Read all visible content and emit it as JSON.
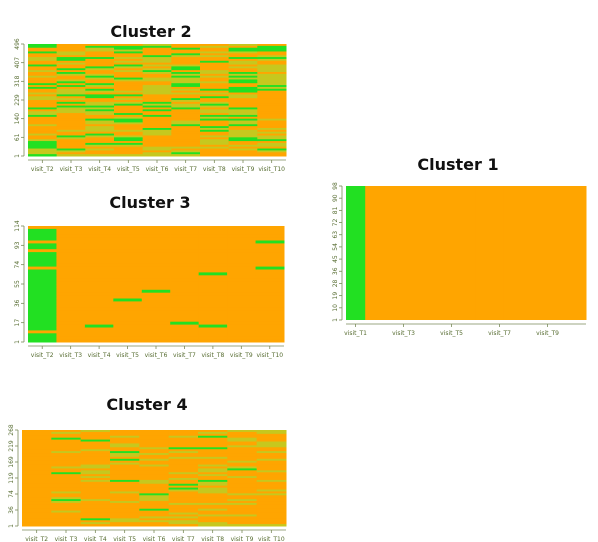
{
  "colors": {
    "green": "#22e022",
    "orange": "#ffa500",
    "yellowgreen": "#c6c81e",
    "axis_text": "#556b2f"
  },
  "chart_data": [
    {
      "type": "heatmap",
      "title": "Cluster 2",
      "xlabel": "",
      "ylabel": "",
      "x_tick_labels": [
        "visit_T2",
        "visit_T3",
        "visit_T4",
        "visit_T5",
        "visit_T6",
        "visit_T7",
        "visit_T8",
        "visit_T9",
        "visit_T10"
      ],
      "y_tick_labels": [
        "1",
        "61",
        "140",
        "229",
        "318",
        "407",
        "496"
      ],
      "n_rows": 496,
      "fill_pattern": "mixed green / orange rows across all visits"
    },
    {
      "type": "heatmap",
      "title": "Cluster 1",
      "xlabel": "",
      "ylabel": "",
      "x_tick_labels": [
        "visit_T1",
        "visit_T3",
        "visit_T5",
        "visit_T7",
        "visit_T9"
      ],
      "y_tick_labels": [
        "1",
        "10",
        "19",
        "28",
        "36",
        "45",
        "54",
        "63",
        "72",
        "81",
        "90",
        "98"
      ],
      "n_rows": 98,
      "fill_pattern": "visit_T1 green, all later visits orange"
    },
    {
      "type": "heatmap",
      "title": "Cluster 3",
      "xlabel": "",
      "ylabel": "",
      "x_tick_labels": [
        "visit_T2",
        "visit_T3",
        "visit_T4",
        "visit_T5",
        "visit_T6",
        "visit_T7",
        "visit_T8",
        "visit_T9",
        "visit_T10"
      ],
      "y_tick_labels": [
        "1",
        "17",
        "36",
        "55",
        "74",
        "93",
        "114"
      ],
      "n_rows": 114,
      "fill_pattern": "visit_T2 mostly green, later visits mostly orange with scattered green"
    },
    {
      "type": "heatmap",
      "title": "Cluster 4",
      "xlabel": "",
      "ylabel": "",
      "x_tick_labels": [
        "visit_T2",
        "visit_T3",
        "visit_T4",
        "visit_T5",
        "visit_T6",
        "visit_T7",
        "visit_T8",
        "visit_T9",
        "visit_T10"
      ],
      "y_tick_labels": [
        "1",
        "36",
        "74",
        "119",
        "169",
        "219",
        "268"
      ],
      "n_rows": 268,
      "fill_pattern": "visit_T2 orange, later visits orange with scattered green rows"
    }
  ]
}
